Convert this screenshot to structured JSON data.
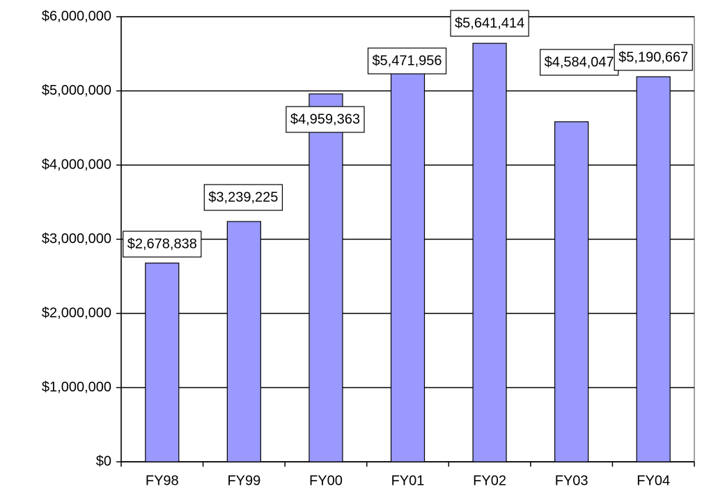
{
  "chart_data": {
    "type": "bar",
    "categories": [
      "FY98",
      "FY99",
      "FY00",
      "FY01",
      "FY02",
      "FY03",
      "FY04"
    ],
    "values": [
      2678838,
      3239225,
      4959363,
      5471956,
      5641414,
      4584047,
      5190667
    ],
    "value_labels": [
      "$2,678,838",
      "$3,239,225",
      "$4,959,363",
      "$5,471,956",
      "$5,641,414",
      "$4,584,047",
      "$5,190,667"
    ],
    "color": "#9999ff",
    "ylim": [
      0,
      6000000
    ],
    "yticks": [
      {
        "value": 0,
        "label": "$0"
      },
      {
        "value": 1000000,
        "label": "$1,000,000"
      },
      {
        "value": 2000000,
        "label": "$2,000,000"
      },
      {
        "value": 3000000,
        "label": "$3,000,000"
      },
      {
        "value": 4000000,
        "label": "$4,000,000"
      },
      {
        "value": 5000000,
        "label": "$5,000,000"
      },
      {
        "value": 6000000,
        "label": "$6,000,000"
      }
    ],
    "grid": true
  }
}
